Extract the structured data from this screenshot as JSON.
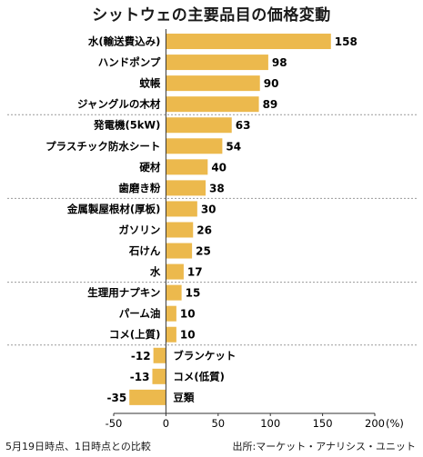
{
  "chart_data": {
    "type": "bar",
    "orientation": "horizontal",
    "title": "シットウェの主要品目の価格変動",
    "categories": [
      "水(輸送費込み)",
      "ハンドポンプ",
      "蚊帳",
      "ジャングルの木材",
      "発電機(5kW)",
      "プラスチック防水シート",
      "硬材",
      "歯磨き粉",
      "金属製屋根材(厚板)",
      "ガソリン",
      "石けん",
      "水",
      "生理用ナプキン",
      "パーム油",
      "コメ(上質)",
      "ブランケット",
      "コメ(低質)",
      "豆類"
    ],
    "values": [
      158,
      98,
      90,
      89,
      63,
      54,
      40,
      38,
      30,
      26,
      25,
      17,
      15,
      10,
      10,
      -12,
      -13,
      -35
    ],
    "value_labels": [
      "158",
      "98",
      "90",
      "89",
      "63",
      "54",
      "40",
      "38",
      "30",
      "26",
      "25",
      "17",
      "15",
      "10",
      "10",
      "-12",
      "-13",
      "-35"
    ],
    "group_breaks_after_index": [
      3,
      7,
      11,
      14
    ],
    "xlim": [
      -50,
      200
    ],
    "xticks": [
      -50,
      0,
      50,
      100,
      150,
      200
    ],
    "xtick_labels": [
      "-50",
      "0",
      "50",
      "100",
      "150",
      "200"
    ],
    "x_unit": "(%)",
    "grid": false,
    "bar_color": "#ecb94d"
  },
  "footer": {
    "note": "5月19日時点、1日時点との比較",
    "source": "出所:マーケット・アナリシス・ユニット"
  }
}
